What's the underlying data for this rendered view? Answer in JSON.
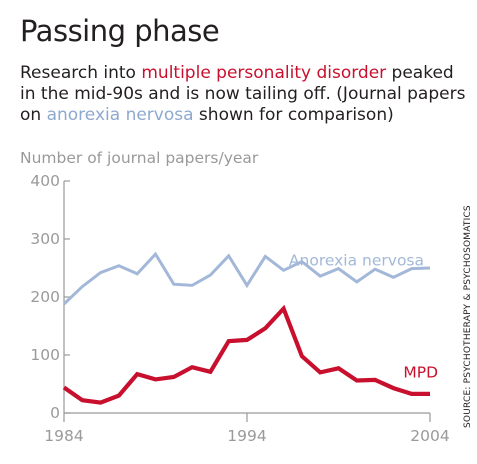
{
  "header": {
    "title": "Passing phase",
    "subtitle_parts": [
      "Research into ",
      "multiple personality disorder",
      " peaked in the mid-90s and is now tailing off. (Journal papers on ",
      "anorexia nervosa",
      " shown for comparison)"
    ]
  },
  "source": "SOURCE: PSYCHOTHERAPY & PSYCHOSOMATICS",
  "colors": {
    "mpd": "#c8102e",
    "anorexia": "#a3b8d8",
    "axis": "#9a9a9a"
  },
  "chart_data": {
    "type": "line",
    "title": "Passing phase",
    "ylabel": "Number of journal papers/year",
    "xlabel": "",
    "xlim": [
      1984,
      2004
    ],
    "ylim": [
      0,
      400
    ],
    "xticks": [
      1984,
      1994,
      2004
    ],
    "yticks": [
      0,
      100,
      200,
      300,
      400
    ],
    "grid": false,
    "legend": "inline",
    "series": [
      {
        "name": "Anorexia nervosa",
        "color": "#a3b8d8",
        "x": [
          1984,
          1985,
          1986,
          1987,
          1988,
          1989,
          1990,
          1991,
          1992,
          1993,
          1994,
          1995,
          1996,
          1997,
          1998,
          1999,
          2000,
          2001,
          2002,
          2003,
          2004
        ],
        "values": [
          188,
          218,
          242,
          254,
          240,
          274,
          222,
          220,
          238,
          271,
          220,
          270,
          246,
          261,
          236,
          249,
          226,
          248,
          234,
          249,
          250
        ]
      },
      {
        "name": "MPD",
        "color": "#c8102e",
        "x": [
          1984,
          1985,
          1986,
          1987,
          1988,
          1989,
          1990,
          1991,
          1992,
          1993,
          1994,
          1995,
          1996,
          1997,
          1998,
          1999,
          2000,
          2001,
          2002,
          2003,
          2004
        ],
        "values": [
          44,
          22,
          18,
          30,
          67,
          58,
          62,
          79,
          71,
          124,
          126,
          146,
          180,
          98,
          70,
          77,
          56,
          57,
          43,
          33,
          33
        ]
      }
    ]
  }
}
